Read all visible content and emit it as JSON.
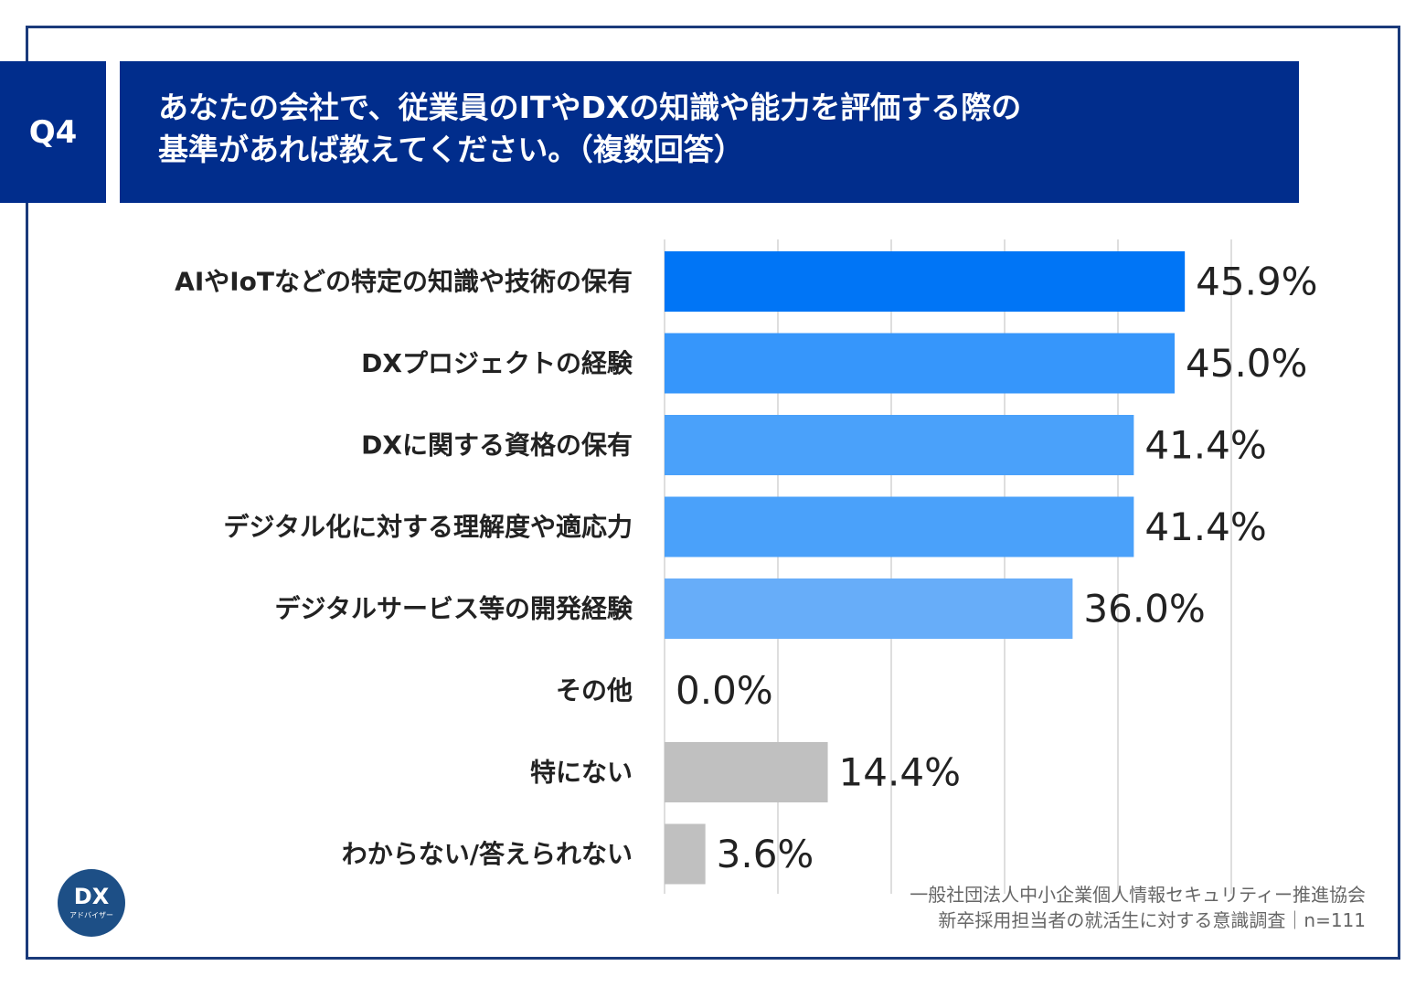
{
  "header": {
    "q_label": "Q4",
    "title_line1": "あなたの会社で、従業員のITやDXの知識や能力を評価する際の",
    "title_line2": "基準があれば教えてください。（複数回答）"
  },
  "chart_data": {
    "type": "bar",
    "orientation": "horizontal",
    "categories": [
      "AIやIoTなどの特定の知識や技術の保有",
      "DXプロジェクトの経験",
      "DXに関する資格の保有",
      "デジタル化に対する理解度や適応力",
      "デジタルサービス等の開発経験",
      "その他",
      "特にない",
      "わからない/答えられない"
    ],
    "values": [
      45.9,
      45.0,
      41.4,
      41.4,
      36.0,
      0.0,
      14.4,
      3.6
    ],
    "value_labels": [
      "45.9%",
      "45.0%",
      "41.4%",
      "41.4%",
      "36.0%",
      "0.0%",
      "14.4%",
      "3.6%"
    ],
    "colors": [
      "#0075f6",
      "#3696fb",
      "#4aa1fa",
      "#4aa1fa",
      "#67adf9",
      "#c0c0c0",
      "#c0c0c0",
      "#c0c0c0"
    ],
    "xlim": [
      0,
      50
    ],
    "grid": true,
    "legend": "none"
  },
  "source": {
    "line1": "一般社団法人中小企業個人情報セキュリティー推進協会",
    "line2": "新卒採用担当者の就活生に対する意識調査｜n=111"
  },
  "logo": {
    "main": "DX",
    "sub": "アドバイザー"
  },
  "colors": {
    "header_bg": "#012d8c",
    "frame_border": "#1a3a7a"
  }
}
